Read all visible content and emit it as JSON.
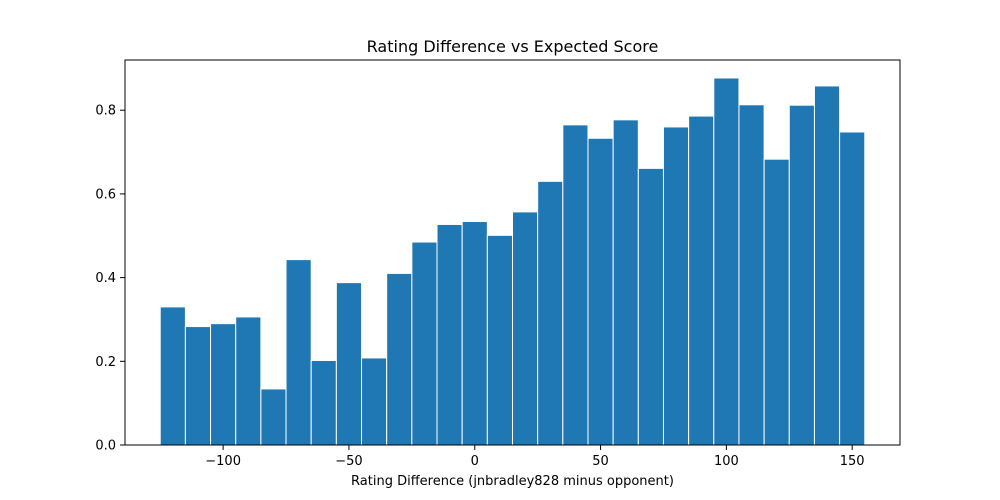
{
  "chart_data": {
    "type": "bar",
    "title": "Rating Difference vs Expected Score",
    "xlabel": "Rating Difference (jnbradley828 minus opponent)",
    "ylabel": "",
    "xlim": [
      -139,
      169
    ],
    "ylim": [
      0,
      0.92
    ],
    "bin_width": 10,
    "x": [
      -120,
      -110,
      -100,
      -90,
      -80,
      -70,
      -60,
      -50,
      -40,
      -30,
      -20,
      -10,
      0,
      10,
      20,
      30,
      40,
      50,
      60,
      70,
      80,
      90,
      100,
      110,
      120,
      130,
      140,
      150
    ],
    "values": [
      0.33,
      0.283,
      0.29,
      0.306,
      0.134,
      0.443,
      0.202,
      0.388,
      0.208,
      0.41,
      0.485,
      0.527,
      0.534,
      0.501,
      0.557,
      0.63,
      0.765,
      0.733,
      0.777,
      0.661,
      0.76,
      0.786,
      0.877,
      0.813,
      0.683,
      0.812,
      0.858,
      0.748
    ],
    "xticks": [
      -100,
      -50,
      0,
      50,
      100,
      150
    ],
    "xtick_labels": [
      "−100",
      "−50",
      "0",
      "50",
      "100",
      "150"
    ],
    "yticks": [
      0.0,
      0.2,
      0.4,
      0.6,
      0.8
    ],
    "ytick_labels": [
      "0.0",
      "0.2",
      "0.4",
      "0.6",
      "0.8"
    ],
    "bar_color": "#1f77b4",
    "edge_color": "#ffffff",
    "grid": false,
    "legend": "none"
  }
}
